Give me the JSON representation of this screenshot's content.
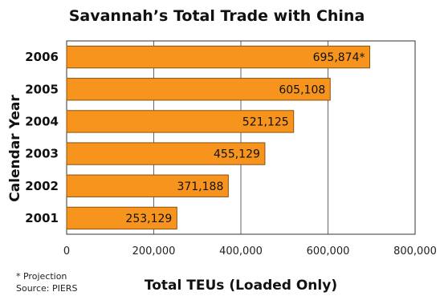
{
  "chart_data": {
    "type": "bar",
    "orientation": "horizontal",
    "title": "Savannah’s Total Trade with China",
    "xlabel": "Total TEUs (Loaded Only)",
    "ylabel": "Calendar Year",
    "categories": [
      "2006",
      "2005",
      "2004",
      "2003",
      "2002",
      "2001"
    ],
    "values": [
      695874,
      605108,
      521125,
      455129,
      371188,
      253129
    ],
    "value_labels": [
      "695,874*",
      "605,108",
      "521,125",
      "455,129",
      "371,188",
      "253,129"
    ],
    "xlim": [
      0,
      800000
    ],
    "xticks": [
      0,
      200000,
      400000,
      600000,
      800000
    ],
    "xtick_labels": [
      "0",
      "200,000",
      "400,000",
      "600,000",
      "800,000"
    ],
    "grid": "vertical",
    "bar_color": "#f7941d",
    "bar_edge_color": "#8a5210"
  },
  "notes": {
    "projection": "* Projection",
    "source": "Source: PIERS"
  }
}
